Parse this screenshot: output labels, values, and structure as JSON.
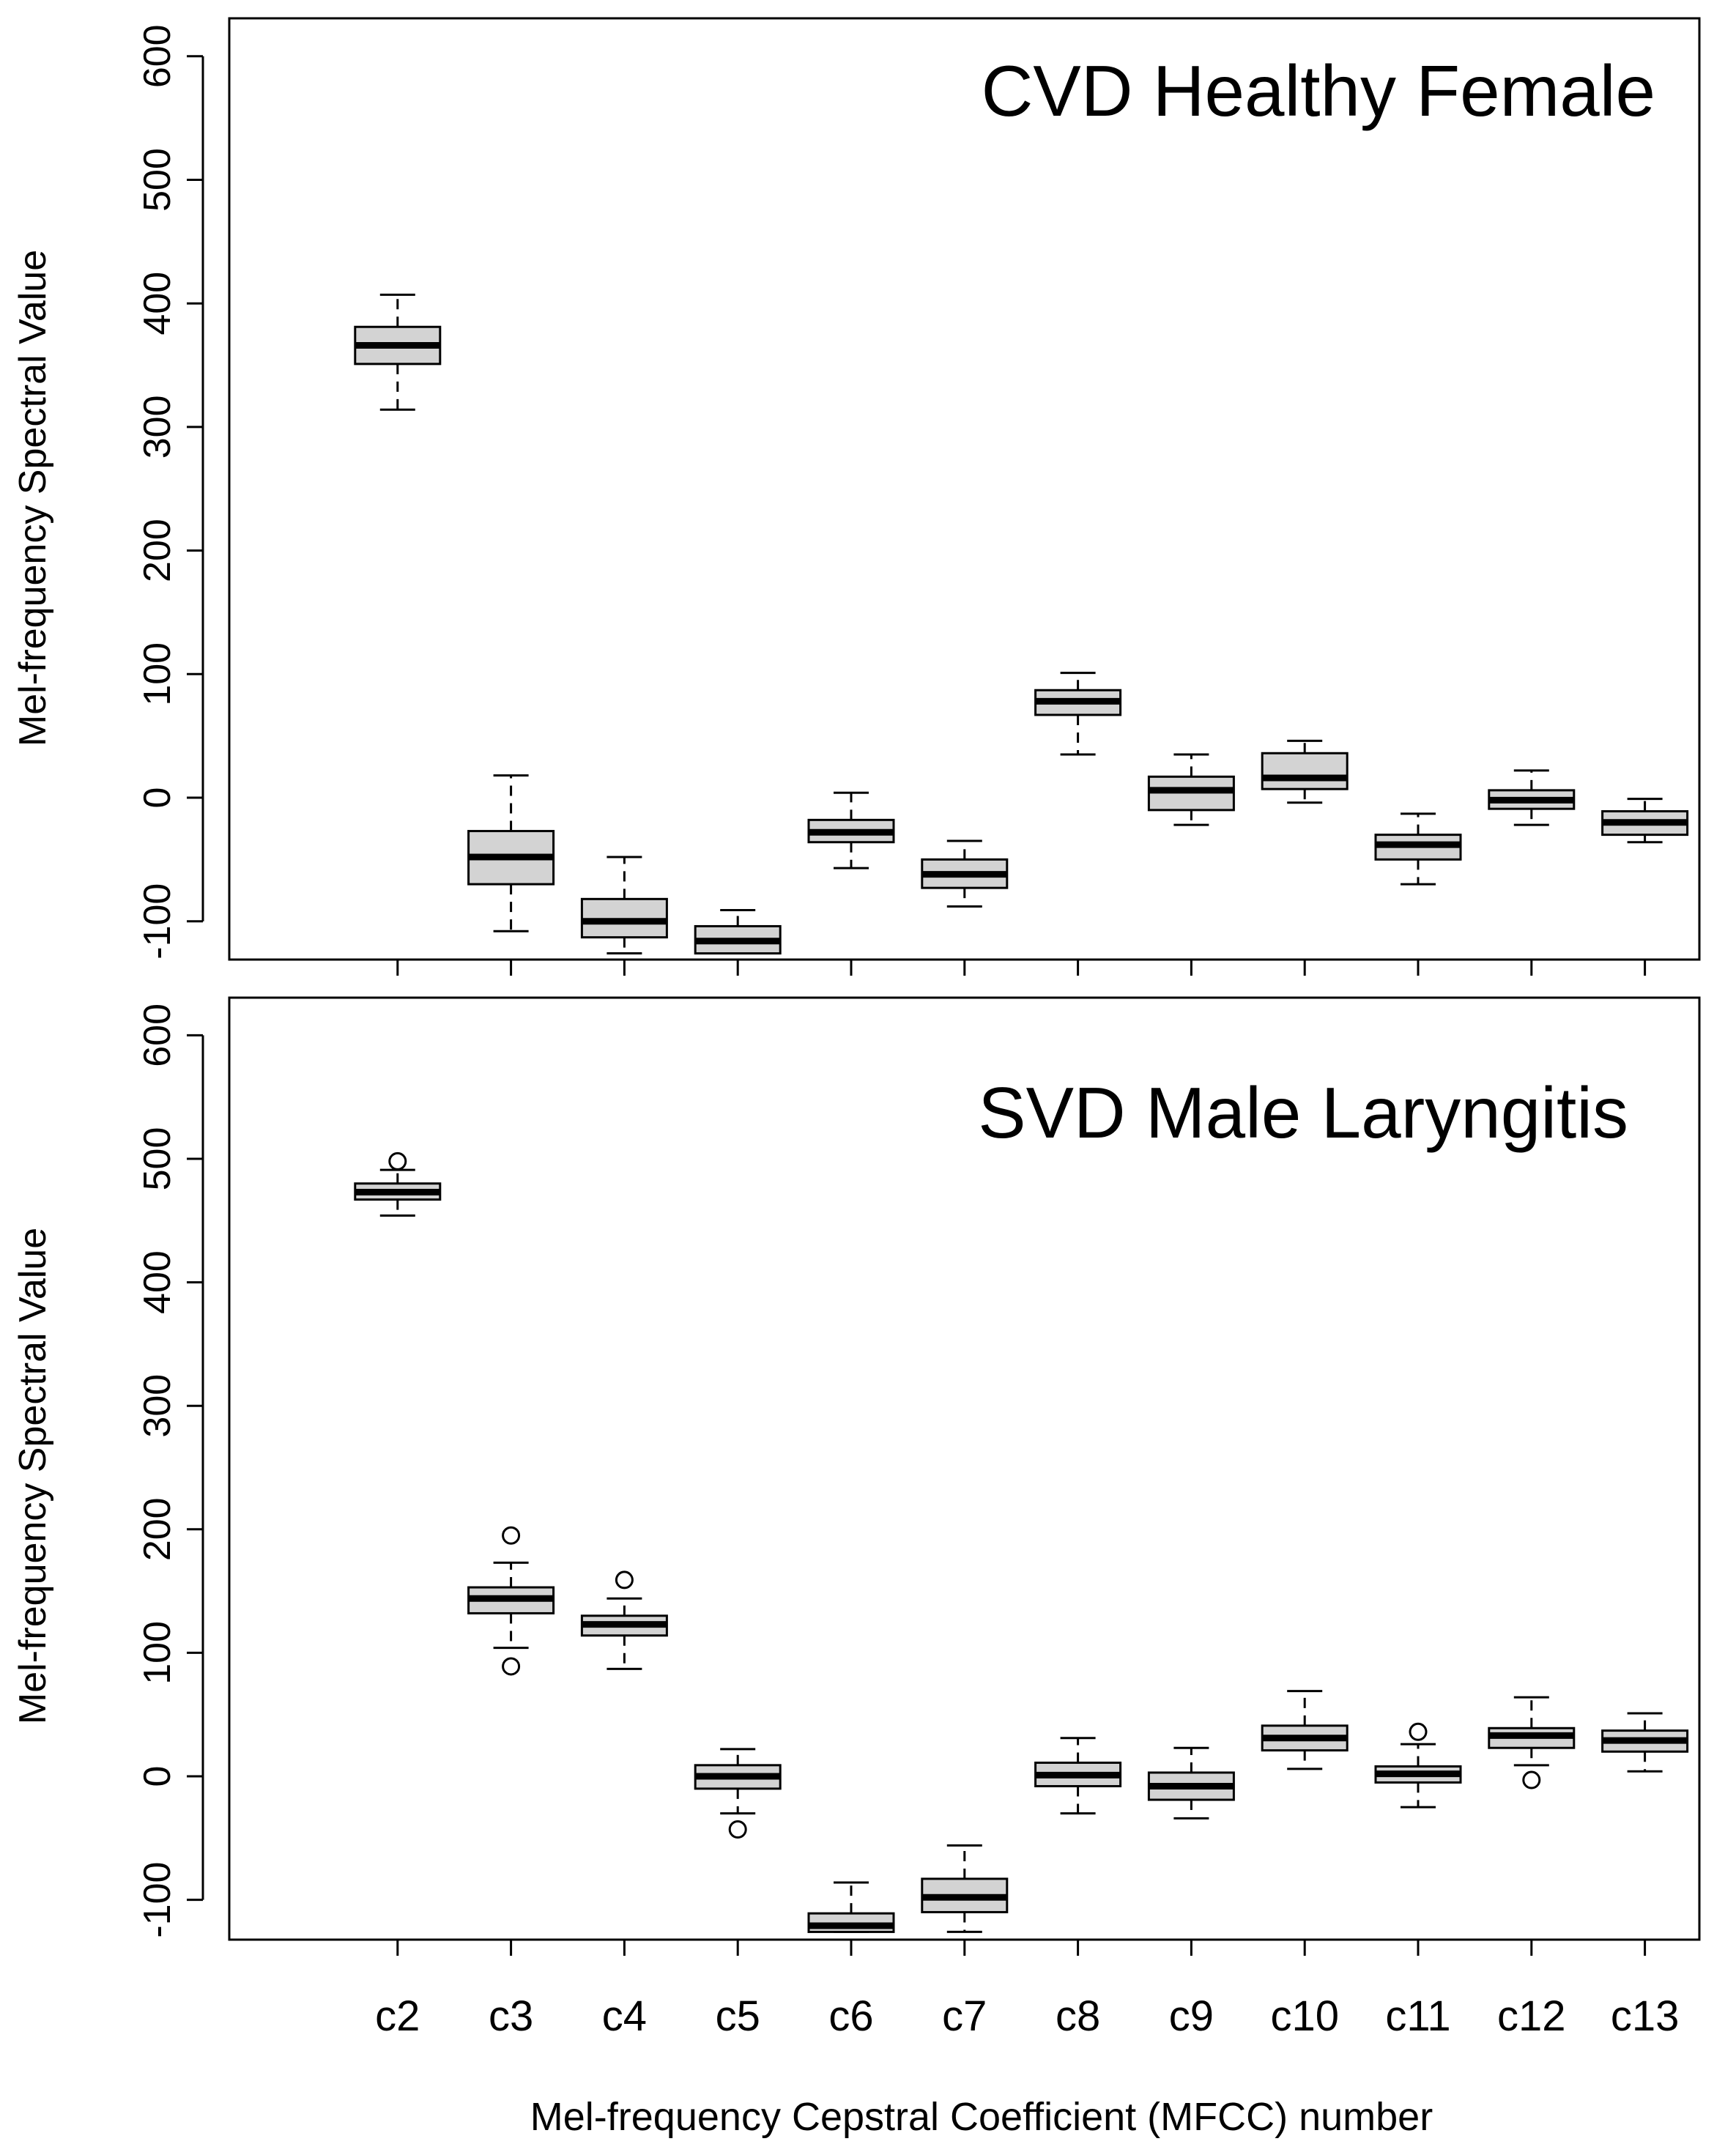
{
  "figure": {
    "xlabel": "Mel-frequency Cepstral Coefficient (MFCC) number"
  },
  "chart_data": [
    {
      "type": "boxplot",
      "title": "CVD Healthy Female",
      "ylabel": "Mel-frequency Spectral Value",
      "ylim": [
        -127,
        631
      ],
      "yticks": [
        -100,
        0,
        100,
        200,
        300,
        400,
        500,
        600
      ],
      "categories": [
        "c2",
        "c3",
        "c4",
        "c5",
        "c6",
        "c7",
        "c8",
        "c9",
        "c10",
        "c11",
        "c12",
        "c13"
      ],
      "boxes": [
        {
          "label": "c2",
          "whisker_low": 314,
          "q1": 351,
          "median": 366,
          "q3": 381,
          "whisker_high": 407,
          "outliers": []
        },
        {
          "label": "c3",
          "whisker_low": -108,
          "q1": -70,
          "median": -48,
          "q3": -27,
          "whisker_high": 18,
          "outliers": []
        },
        {
          "label": "c4",
          "whisker_low": -126,
          "q1": -113,
          "median": -100,
          "q3": -82,
          "whisker_high": -48,
          "outliers": []
        },
        {
          "label": "c5",
          "whisker_low": -126,
          "q1": -126,
          "median": -116,
          "q3": -104,
          "whisker_high": -91,
          "outliers": []
        },
        {
          "label": "c6",
          "whisker_low": -57,
          "q1": -36,
          "median": -28,
          "q3": -18,
          "whisker_high": 4,
          "outliers": []
        },
        {
          "label": "c7",
          "whisker_low": -88,
          "q1": -73,
          "median": -62,
          "q3": -50,
          "whisker_high": -35,
          "outliers": []
        },
        {
          "label": "c8",
          "whisker_low": 35,
          "q1": 67,
          "median": 78,
          "q3": 87,
          "whisker_high": 101,
          "outliers": []
        },
        {
          "label": "c9",
          "whisker_low": -22,
          "q1": -10,
          "median": 6,
          "q3": 17,
          "whisker_high": 35,
          "outliers": []
        },
        {
          "label": "c10",
          "whisker_low": -4,
          "q1": 7,
          "median": 16,
          "q3": 36,
          "whisker_high": 46,
          "outliers": []
        },
        {
          "label": "c11",
          "whisker_low": -70,
          "q1": -50,
          "median": -38,
          "q3": -30,
          "whisker_high": -13,
          "outliers": []
        },
        {
          "label": "c12",
          "whisker_low": -22,
          "q1": -9,
          "median": -2,
          "q3": 6,
          "whisker_high": 22,
          "outliers": []
        },
        {
          "label": "c13",
          "whisker_low": -36,
          "q1": -30,
          "median": -20,
          "q3": -11,
          "whisker_high": -1,
          "outliers": []
        }
      ]
    },
    {
      "type": "boxplot",
      "title": "SVD Male Laryngitis",
      "ylabel": "Mel-frequency Spectral Value",
      "ylim": [
        -127,
        631
      ],
      "yticks": [
        -100,
        0,
        100,
        200,
        300,
        400,
        500,
        600
      ],
      "categories": [
        "c2",
        "c3",
        "c4",
        "c5",
        "c6",
        "c7",
        "c8",
        "c9",
        "c10",
        "c11",
        "c12",
        "c13"
      ],
      "boxes": [
        {
          "label": "c2",
          "whisker_low": 454,
          "q1": 467,
          "median": 473,
          "q3": 480,
          "whisker_high": 491,
          "outliers": [
            498
          ]
        },
        {
          "label": "c3",
          "whisker_low": 104,
          "q1": 132,
          "median": 144,
          "q3": 153,
          "whisker_high": 173,
          "outliers": [
            89,
            195
          ]
        },
        {
          "label": "c4",
          "whisker_low": 87,
          "q1": 114,
          "median": 123,
          "q3": 130,
          "whisker_high": 144,
          "outliers": [
            159
          ]
        },
        {
          "label": "c5",
          "whisker_low": -30,
          "q1": -10,
          "median": 0,
          "q3": 9,
          "whisker_high": 22,
          "outliers": [
            -43
          ]
        },
        {
          "label": "c6",
          "whisker_low": -126,
          "q1": -126,
          "median": -121,
          "q3": -111,
          "whisker_high": -86,
          "outliers": []
        },
        {
          "label": "c7",
          "whisker_low": -126,
          "q1": -110,
          "median": -98,
          "q3": -83,
          "whisker_high": -56,
          "outliers": []
        },
        {
          "label": "c8",
          "whisker_low": -30,
          "q1": -8,
          "median": 1,
          "q3": 11,
          "whisker_high": 31,
          "outliers": []
        },
        {
          "label": "c9",
          "whisker_low": -34,
          "q1": -19,
          "median": -8,
          "q3": 3,
          "whisker_high": 23,
          "outliers": []
        },
        {
          "label": "c10",
          "whisker_low": 6,
          "q1": 21,
          "median": 31,
          "q3": 41,
          "whisker_high": 69,
          "outliers": []
        },
        {
          "label": "c11",
          "whisker_low": -25,
          "q1": -5,
          "median": 2,
          "q3": 8,
          "whisker_high": 26,
          "outliers": [
            36
          ]
        },
        {
          "label": "c12",
          "whisker_low": 9,
          "q1": 23,
          "median": 33,
          "q3": 39,
          "whisker_high": 64,
          "outliers": [
            -3
          ]
        },
        {
          "label": "c13",
          "whisker_low": 4,
          "q1": 20,
          "median": 29,
          "q3": 37,
          "whisker_high": 51,
          "outliers": []
        }
      ]
    }
  ]
}
